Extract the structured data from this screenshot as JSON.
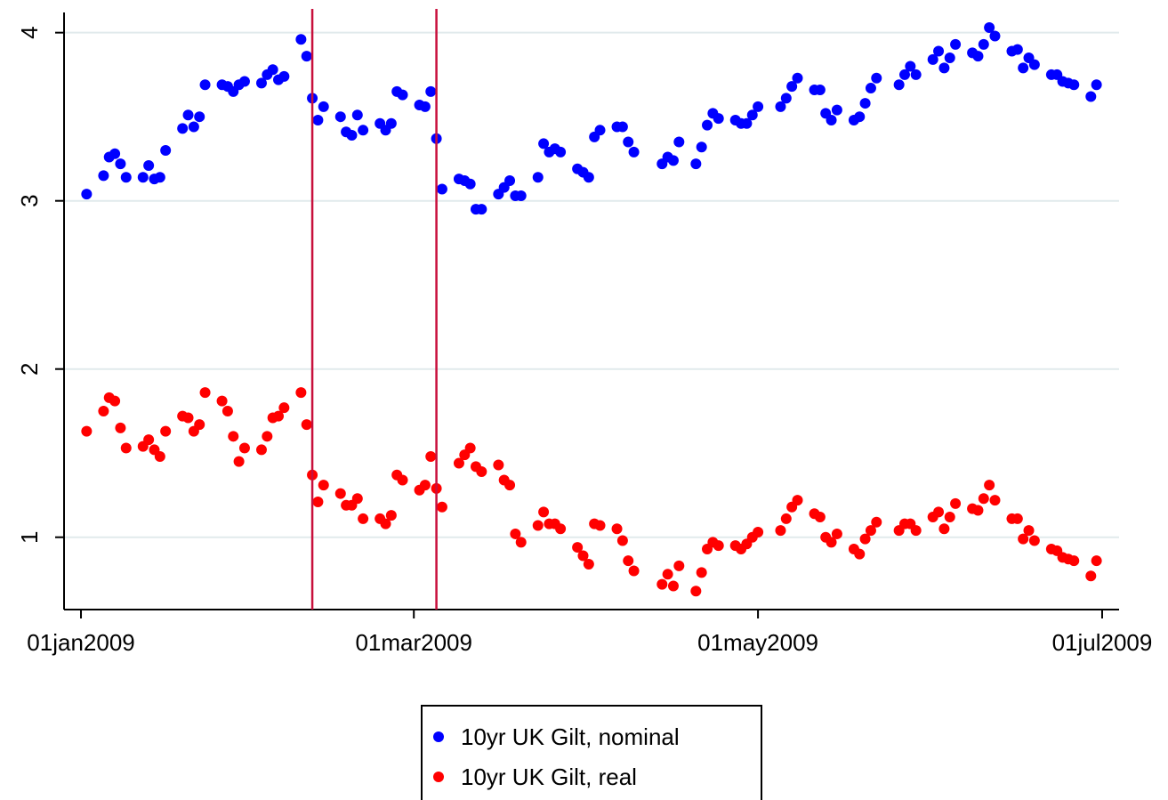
{
  "chart_data": {
    "type": "scatter",
    "x": [
      "2009-01-02",
      "2009-01-05",
      "2009-01-06",
      "2009-01-07",
      "2009-01-08",
      "2009-01-09",
      "2009-01-12",
      "2009-01-13",
      "2009-01-14",
      "2009-01-15",
      "2009-01-16",
      "2009-01-19",
      "2009-01-20",
      "2009-01-21",
      "2009-01-22",
      "2009-01-23",
      "2009-01-26",
      "2009-01-27",
      "2009-01-28",
      "2009-01-29",
      "2009-01-30",
      "2009-02-02",
      "2009-02-03",
      "2009-02-04",
      "2009-02-05",
      "2009-02-06",
      "2009-02-09",
      "2009-02-10",
      "2009-02-11",
      "2009-02-12",
      "2009-02-13",
      "2009-02-16",
      "2009-02-17",
      "2009-02-18",
      "2009-02-19",
      "2009-02-20",
      "2009-02-23",
      "2009-02-24",
      "2009-02-25",
      "2009-02-26",
      "2009-02-27",
      "2009-03-02",
      "2009-03-03",
      "2009-03-04",
      "2009-03-05",
      "2009-03-06",
      "2009-03-09",
      "2009-03-10",
      "2009-03-11",
      "2009-03-12",
      "2009-03-13",
      "2009-03-16",
      "2009-03-17",
      "2009-03-18",
      "2009-03-19",
      "2009-03-20",
      "2009-03-23",
      "2009-03-24",
      "2009-03-25",
      "2009-03-26",
      "2009-03-27",
      "2009-03-30",
      "2009-03-31",
      "2009-04-01",
      "2009-04-02",
      "2009-04-03",
      "2009-04-06",
      "2009-04-07",
      "2009-04-08",
      "2009-04-09",
      "2009-04-14",
      "2009-04-15",
      "2009-04-16",
      "2009-04-17",
      "2009-04-20",
      "2009-04-21",
      "2009-04-22",
      "2009-04-23",
      "2009-04-24",
      "2009-04-27",
      "2009-04-28",
      "2009-04-29",
      "2009-04-30",
      "2009-05-01",
      "2009-05-05",
      "2009-05-06",
      "2009-05-07",
      "2009-05-08",
      "2009-05-11",
      "2009-05-12",
      "2009-05-13",
      "2009-05-14",
      "2009-05-15",
      "2009-05-18",
      "2009-05-19",
      "2009-05-20",
      "2009-05-21",
      "2009-05-22",
      "2009-05-26",
      "2009-05-27",
      "2009-05-28",
      "2009-05-29",
      "2009-06-01",
      "2009-06-02",
      "2009-06-03",
      "2009-06-04",
      "2009-06-05",
      "2009-06-08",
      "2009-06-09",
      "2009-06-10",
      "2009-06-11",
      "2009-06-12",
      "2009-06-15",
      "2009-06-16",
      "2009-06-17",
      "2009-06-18",
      "2009-06-19",
      "2009-06-22",
      "2009-06-23",
      "2009-06-24",
      "2009-06-25",
      "2009-06-26",
      "2009-06-29",
      "2009-06-30"
    ],
    "series": [
      {
        "name": "10yr UK Gilt, nominal",
        "color": "#0000ff",
        "values": [
          3.04,
          3.15,
          3.26,
          3.28,
          3.22,
          3.14,
          3.14,
          3.21,
          3.13,
          3.14,
          3.3,
          3.43,
          3.51,
          3.44,
          3.5,
          3.69,
          3.69,
          3.68,
          3.65,
          3.69,
          3.71,
          3.7,
          3.75,
          3.78,
          3.72,
          3.74,
          3.96,
          3.86,
          3.61,
          3.48,
          3.56,
          3.5,
          3.41,
          3.39,
          3.51,
          3.42,
          3.46,
          3.42,
          3.46,
          3.65,
          3.63,
          3.57,
          3.56,
          3.65,
          3.37,
          3.07,
          3.13,
          3.12,
          3.1,
          2.95,
          2.95,
          3.04,
          3.08,
          3.12,
          3.03,
          3.03,
          3.14,
          3.34,
          3.29,
          3.31,
          3.29,
          3.19,
          3.17,
          3.14,
          3.38,
          3.42,
          3.44,
          3.44,
          3.35,
          3.29,
          3.22,
          3.26,
          3.24,
          3.35,
          3.22,
          3.32,
          3.45,
          3.52,
          3.49,
          3.48,
          3.46,
          3.46,
          3.51,
          3.56,
          3.56,
          3.61,
          3.68,
          3.73,
          3.66,
          3.66,
          3.52,
          3.48,
          3.54,
          3.48,
          3.5,
          3.58,
          3.67,
          3.73,
          3.69,
          3.75,
          3.8,
          3.75,
          3.84,
          3.89,
          3.79,
          3.85,
          3.93,
          3.88,
          3.86,
          3.93,
          4.03,
          3.98,
          3.89,
          3.9,
          3.79,
          3.85,
          3.81,
          3.75,
          3.75,
          3.71,
          3.7,
          3.69,
          3.62,
          3.69
        ]
      },
      {
        "name": "10yr UK Gilt, real",
        "color": "#ff0000",
        "values": [
          1.63,
          1.75,
          1.83,
          1.81,
          1.65,
          1.53,
          1.54,
          1.58,
          1.52,
          1.48,
          1.63,
          1.72,
          1.71,
          1.63,
          1.67,
          1.86,
          1.81,
          1.75,
          1.6,
          1.45,
          1.53,
          1.52,
          1.6,
          1.71,
          1.72,
          1.77,
          1.86,
          1.67,
          1.37,
          1.21,
          1.31,
          1.26,
          1.19,
          1.19,
          1.23,
          1.11,
          1.11,
          1.08,
          1.13,
          1.37,
          1.34,
          1.28,
          1.31,
          1.48,
          1.29,
          1.18,
          1.44,
          1.49,
          1.53,
          1.42,
          1.39,
          1.43,
          1.34,
          1.31,
          1.02,
          0.97,
          1.07,
          1.15,
          1.08,
          1.08,
          1.05,
          0.94,
          0.89,
          0.84,
          1.08,
          1.07,
          1.05,
          0.98,
          0.86,
          0.8,
          0.72,
          0.78,
          0.71,
          0.83,
          0.68,
          0.79,
          0.93,
          0.97,
          0.95,
          0.95,
          0.93,
          0.96,
          1.0,
          1.03,
          1.04,
          1.11,
          1.18,
          1.22,
          1.14,
          1.12,
          1.0,
          0.97,
          1.02,
          0.93,
          0.9,
          0.99,
          1.04,
          1.09,
          1.04,
          1.08,
          1.08,
          1.04,
          1.12,
          1.15,
          1.05,
          1.12,
          1.2,
          1.17,
          1.16,
          1.23,
          1.31,
          1.22,
          1.11,
          1.11,
          0.99,
          1.04,
          0.98,
          0.93,
          0.92,
          0.88,
          0.87,
          0.86,
          0.77,
          0.86
        ]
      }
    ],
    "xlim": [
      "2008-12-29",
      "2009-07-04"
    ],
    "xticks": [
      {
        "value": "2009-01-01",
        "label": "01jan2009"
      },
      {
        "value": "2009-03-01",
        "label": "01mar2009"
      },
      {
        "value": "2009-05-01",
        "label": "01may2009"
      },
      {
        "value": "2009-07-01",
        "label": "01jul2009"
      }
    ],
    "ylim": [
      0.57,
      4.12
    ],
    "yticks": [
      1,
      2,
      3,
      4
    ],
    "grid": true,
    "xlines": {
      "values": [
        "2009-02-11",
        "2009-03-05"
      ],
      "color": "#c8103c"
    },
    "legend": "bottom"
  }
}
